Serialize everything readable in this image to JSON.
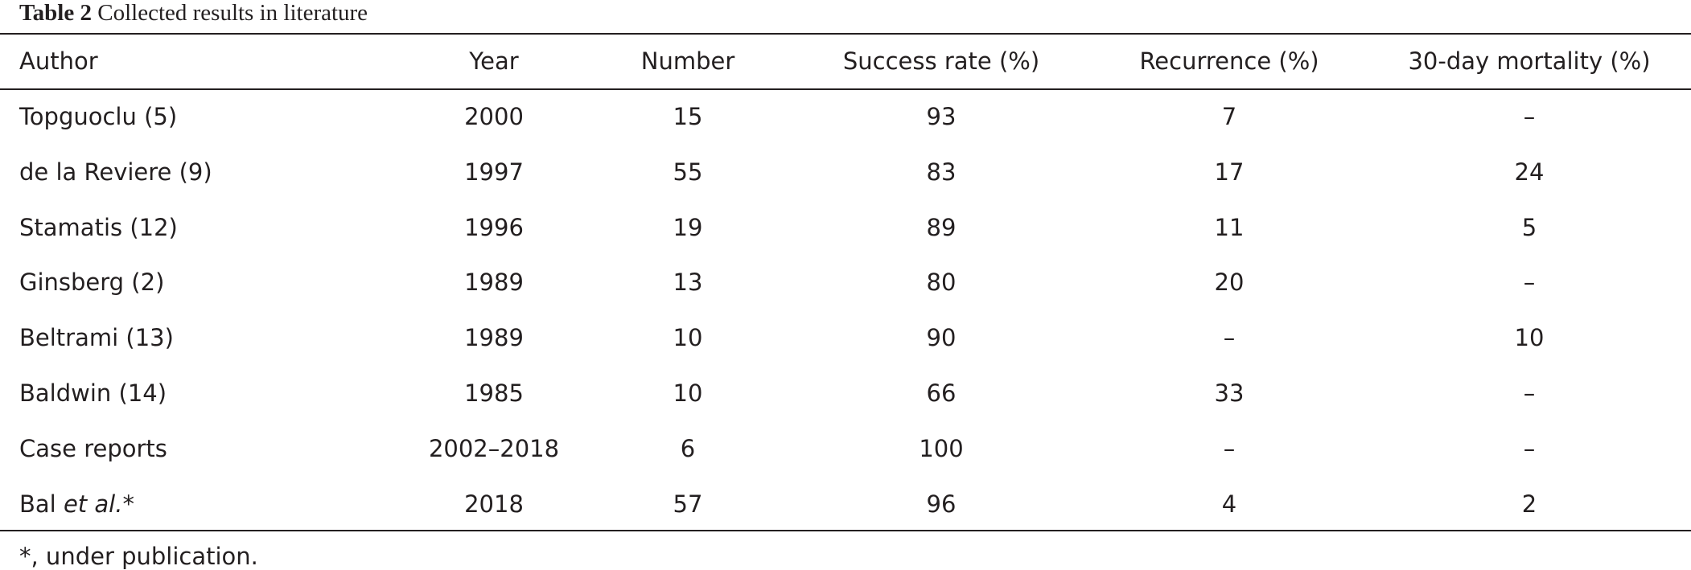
{
  "caption": {
    "label": "Table 2",
    "title": "Collected results in literature"
  },
  "table": {
    "header": [
      "Author",
      "Year",
      "Number",
      "Success rate (%)",
      "Recurrence (%)",
      "30-day mortality (%)"
    ],
    "rows": [
      [
        "Topguoclu (5)",
        "2000",
        "15",
        "93",
        "7",
        "–"
      ],
      [
        "de la Reviere (9)",
        "1997",
        "55",
        "83",
        "17",
        "24"
      ],
      [
        "Stamatis (12)",
        "1996",
        "19",
        "89",
        "11",
        "5"
      ],
      [
        "Ginsberg (2)",
        "1989",
        "13",
        "80",
        "20",
        "–"
      ],
      [
        "Beltrami (13)",
        "1989",
        "10",
        "90",
        "–",
        "10"
      ],
      [
        "Baldwin (14)",
        "1985",
        "10",
        "66",
        "33",
        "–"
      ],
      [
        "Case reports",
        "2002–2018",
        "6",
        "100",
        "–",
        "–"
      ],
      [
        [
          "Bal ",
          "et al.",
          "*"
        ],
        "2018",
        "57",
        "96",
        "4",
        "2"
      ]
    ]
  },
  "footnote": "*, under publication."
}
